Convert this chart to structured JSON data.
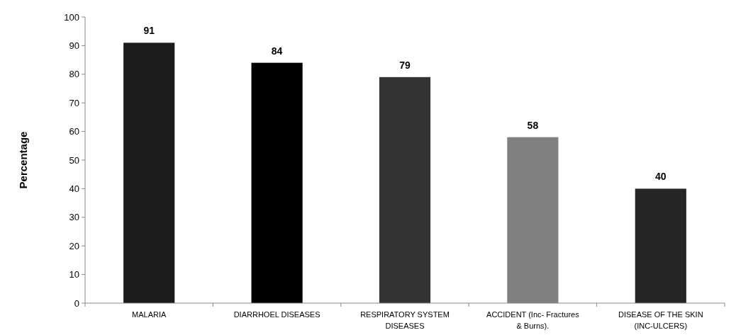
{
  "chart_data": {
    "type": "bar",
    "ylabel": "Percentage",
    "categories": [
      "MALARIA",
      "DIARRHOEL DISEASES",
      "RESPIRATORY SYSTEM DISEASES",
      "ACCIDENT (Inc- Fractures & Burns).",
      "DISEASE OF THE SKIN (INC-ULCERS)"
    ],
    "values": [
      91,
      84,
      79,
      58,
      40
    ],
    "colors": [
      "#1a1a1a",
      "#000000",
      "#333333",
      "#808080",
      "#262626"
    ],
    "ylim": [
      0,
      100
    ],
    "yticks": [
      0,
      10,
      20,
      30,
      40,
      50,
      60,
      70,
      80,
      90,
      100
    ],
    "data_labels": true,
    "grid": false
  }
}
